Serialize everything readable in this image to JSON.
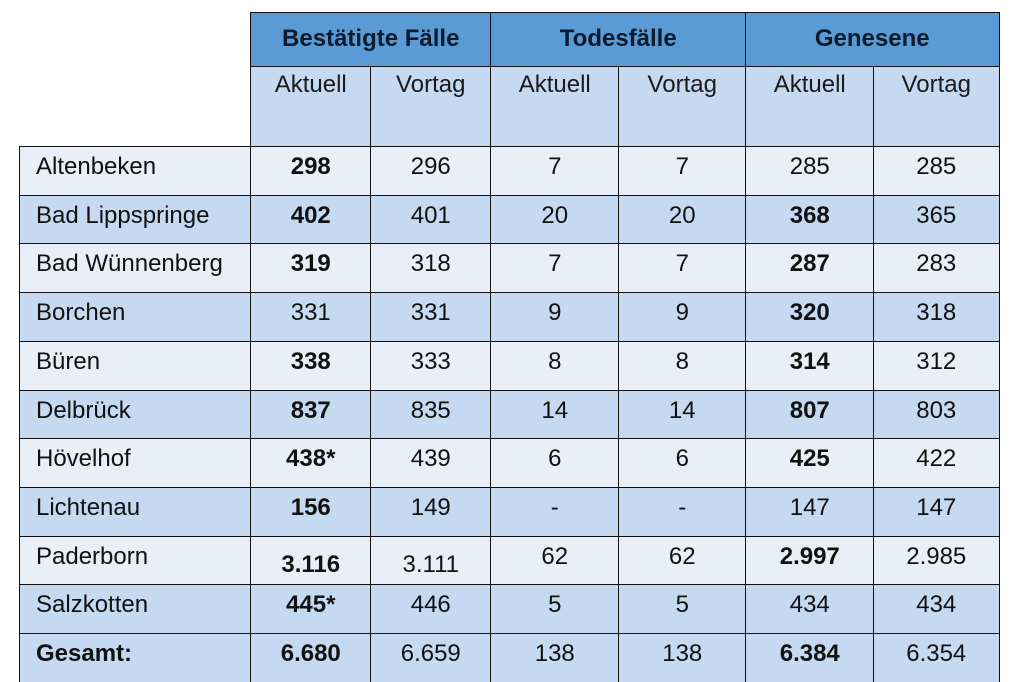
{
  "table": {
    "groups": [
      {
        "label": "Bestätigte Fälle"
      },
      {
        "label": "Todesfälle"
      },
      {
        "label": "Genesene"
      }
    ],
    "subheaders": [
      "Aktuell",
      "Vortag",
      "Aktuell",
      "Vortag",
      "Aktuell",
      "Vortag"
    ],
    "colors": {
      "group_header_bg": "#5b9bd5",
      "subheader_bg": "#c5d9f1",
      "row_light_bg": "#e9eef7",
      "row_dark_bg": "#c5d9f1",
      "border": "#111111"
    },
    "rows": [
      {
        "name": "Altenbeken",
        "values": [
          "298",
          "296",
          "7",
          "7",
          "285",
          "285"
        ],
        "bold": [
          true,
          false,
          false,
          false,
          false,
          false
        ]
      },
      {
        "name": "Bad Lippspringe",
        "values": [
          "402",
          "401",
          "20",
          "20",
          "368",
          "365"
        ],
        "bold": [
          true,
          false,
          false,
          false,
          true,
          false
        ]
      },
      {
        "name": "Bad Wünnenberg",
        "values": [
          "319",
          "318",
          "7",
          "7",
          "287",
          "283"
        ],
        "bold": [
          true,
          false,
          false,
          false,
          true,
          false
        ]
      },
      {
        "name": "Borchen",
        "values": [
          "331",
          "331",
          "9",
          "9",
          "320",
          "318"
        ],
        "bold": [
          false,
          false,
          false,
          false,
          true,
          false
        ]
      },
      {
        "name": "Büren",
        "values": [
          "338",
          "333",
          "8",
          "8",
          "314",
          "312"
        ],
        "bold": [
          true,
          false,
          false,
          false,
          true,
          false
        ]
      },
      {
        "name": "Delbrück",
        "values": [
          "837",
          "835",
          "14",
          "14",
          "807",
          "803"
        ],
        "bold": [
          true,
          false,
          false,
          false,
          true,
          false
        ]
      },
      {
        "name": "Hövelhof",
        "values": [
          "438*",
          "439",
          "6",
          "6",
          "425",
          "422"
        ],
        "bold": [
          true,
          false,
          false,
          false,
          true,
          false
        ]
      },
      {
        "name": "Lichtenau",
        "values": [
          "156",
          "149",
          "-",
          "-",
          "147",
          "147"
        ],
        "bold": [
          true,
          false,
          false,
          false,
          false,
          false
        ]
      },
      {
        "name": "Paderborn",
        "values": [
          "3.116",
          "3.111",
          "62",
          "62",
          "2.997",
          "2.985"
        ],
        "bold": [
          true,
          false,
          false,
          false,
          true,
          false
        ]
      },
      {
        "name": "Salzkotten",
        "values": [
          "445*",
          "446",
          "5",
          "5",
          "434",
          "434"
        ],
        "bold": [
          true,
          false,
          false,
          false,
          false,
          false
        ]
      },
      {
        "name": "Gesamt:",
        "values": [
          "6.680",
          "6.659",
          "138",
          "138",
          "6.384",
          "6.354"
        ],
        "bold": [
          true,
          false,
          false,
          false,
          true,
          false
        ],
        "name_bold": true
      }
    ]
  }
}
